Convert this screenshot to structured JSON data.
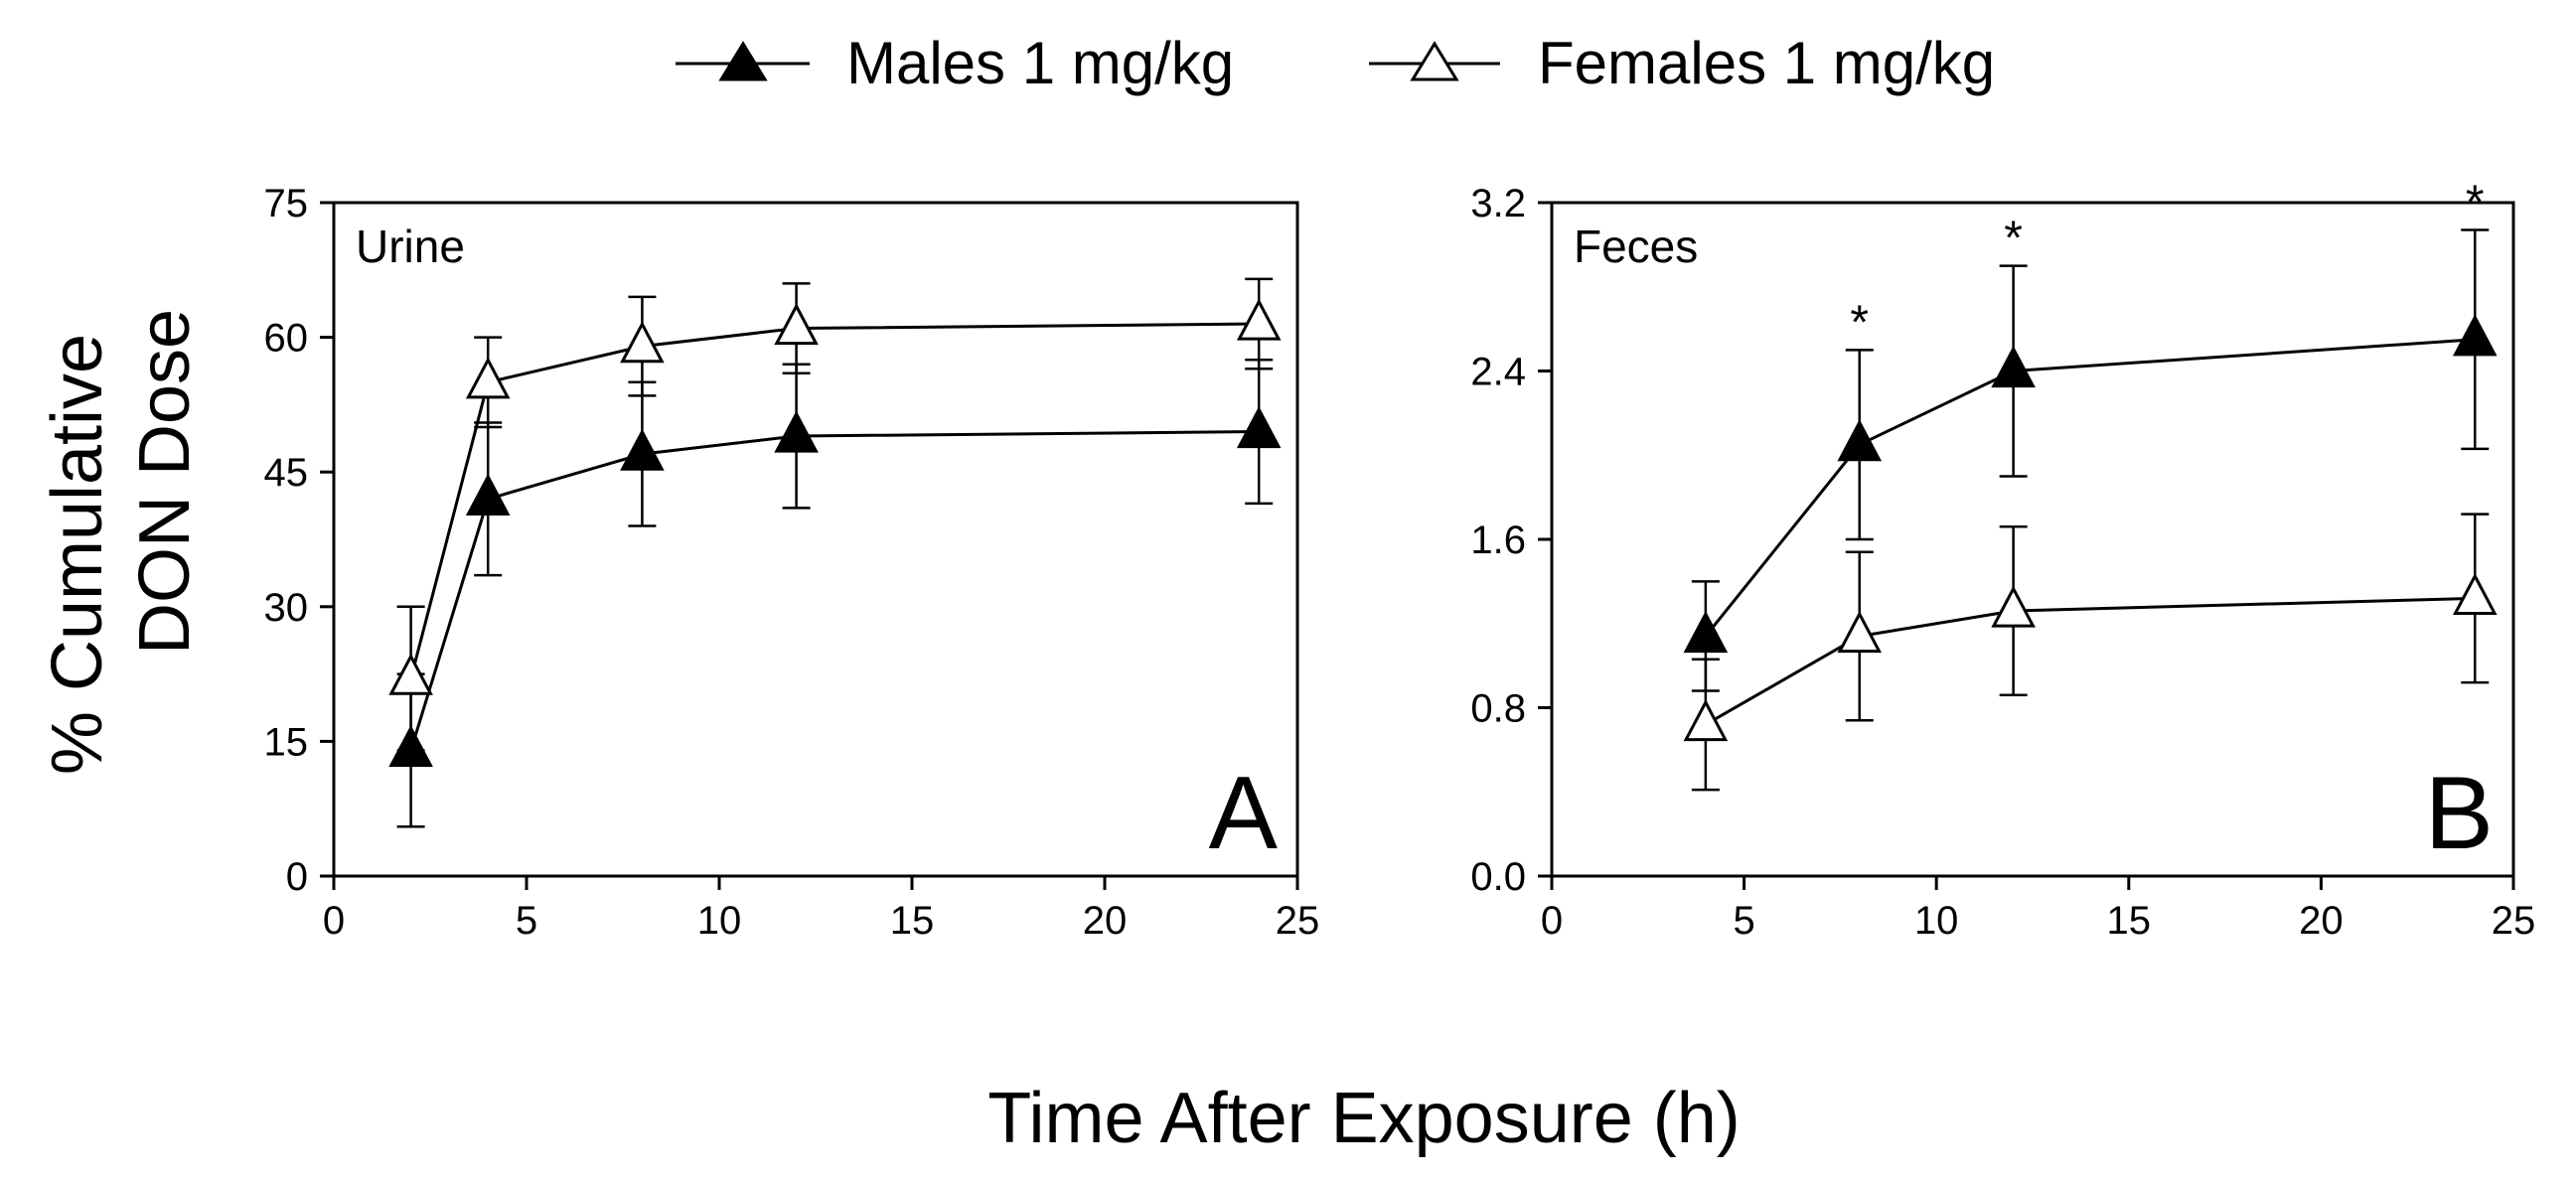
{
  "legend": {
    "males": "Males 1 mg/kg",
    "females": "Females 1 mg/kg"
  },
  "ylabel_line1": "% Cumulative",
  "ylabel_line2": "DON Dose",
  "xlabel": "Time After Exposure (h)",
  "colors": {
    "males": "#000000",
    "females": "#ffffff",
    "line": "#000000"
  },
  "chart_data": [
    {
      "type": "line",
      "title": "Urine",
      "panel": "A",
      "xlim": [
        0,
        25
      ],
      "ylim": [
        0,
        75
      ],
      "xticks": [
        0,
        5,
        10,
        15,
        20,
        25
      ],
      "yticks": [
        0,
        15,
        30,
        45,
        60,
        75
      ],
      "ytick_labels": [
        "0",
        "15",
        "30",
        "45",
        "60",
        "75"
      ],
      "series": [
        {
          "name": "Males 1 mg/kg",
          "marker": "filled-triangle",
          "x": [
            2,
            4,
            8,
            12,
            24
          ],
          "y": [
            14,
            42,
            47,
            49,
            49.5
          ],
          "err": [
            8.5,
            8.5,
            8,
            8,
            8
          ],
          "significant": [
            false,
            false,
            false,
            false,
            false
          ]
        },
        {
          "name": "Females 1 mg/kg",
          "marker": "open-triangle",
          "x": [
            2,
            4,
            8,
            12,
            24
          ],
          "y": [
            22,
            55,
            59,
            61,
            61.5
          ],
          "err": [
            8,
            5,
            5.5,
            5,
            5
          ],
          "significant": [
            false,
            false,
            false,
            false,
            false
          ]
        }
      ]
    },
    {
      "type": "line",
      "title": "Feces",
      "panel": "B",
      "xlim": [
        0,
        25
      ],
      "ylim": [
        0,
        3.2
      ],
      "xticks": [
        0,
        5,
        10,
        15,
        20,
        25
      ],
      "yticks": [
        0,
        0.8,
        1.6,
        2.4,
        3.2
      ],
      "ytick_labels": [
        "0.0",
        "0.8",
        "1.6",
        "2.4",
        "3.2"
      ],
      "series": [
        {
          "name": "Males 1 mg/kg",
          "marker": "filled-triangle",
          "x": [
            4,
            8,
            12,
            24
          ],
          "y": [
            1.14,
            2.05,
            2.4,
            2.55
          ],
          "err": [
            0.26,
            0.45,
            0.5,
            0.52
          ],
          "significant": [
            false,
            true,
            true,
            true
          ]
        },
        {
          "name": "Females 1 mg/kg",
          "marker": "open-triangle",
          "x": [
            4,
            8,
            12,
            24
          ],
          "y": [
            0.72,
            1.14,
            1.26,
            1.32
          ],
          "err": [
            0.31,
            0.4,
            0.4,
            0.4
          ],
          "significant": [
            false,
            false,
            false,
            false
          ]
        }
      ]
    }
  ],
  "significance_marker": "*"
}
